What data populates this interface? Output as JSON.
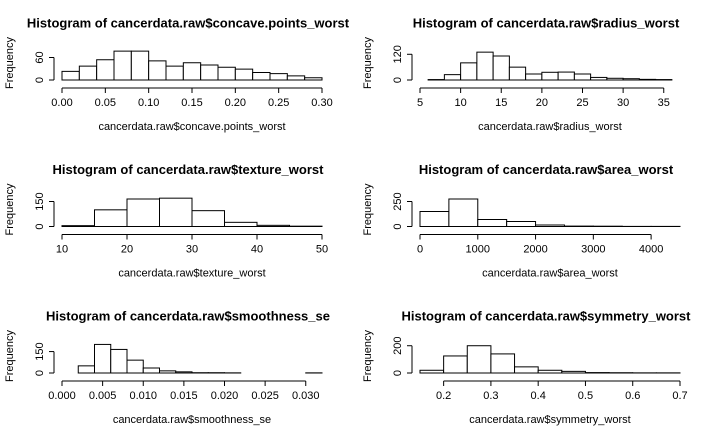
{
  "chart_data": [
    {
      "type": "histogram",
      "title": "Histogram of cancerdata.raw$concave.points_worst",
      "xlabel": "cancerdata.raw$concave.points_worst",
      "ylabel": "Frequency",
      "bins": [
        0,
        0.02,
        0.04,
        0.06,
        0.08,
        0.1,
        0.12,
        0.14,
        0.16,
        0.18,
        0.2,
        0.22,
        0.24,
        0.26,
        0.28,
        0.3
      ],
      "values": [
        23,
        37,
        54,
        77,
        77,
        51,
        37,
        46,
        40,
        34,
        29,
        20,
        17,
        11,
        6
      ],
      "xlim": [
        0,
        0.3
      ],
      "xticks": [
        {
          "value": 0,
          "label": "0.00"
        },
        0.05,
        {
          "value": 0.1,
          "label": "0.10"
        },
        0.15,
        {
          "value": 0.2,
          "label": "0.20"
        },
        0.25,
        {
          "value": 0.3,
          "label": "0.30"
        }
      ],
      "ylim": [
        0,
        80
      ],
      "yticks": [
        0,
        60
      ],
      "color": "#ffffff"
    },
    {
      "type": "histogram",
      "title": "Histogram of cancerdata.raw$radius_worst",
      "xlabel": "cancerdata.raw$radius_worst",
      "ylabel": "Frequency",
      "bins": [
        6,
        8,
        10,
        12,
        14,
        16,
        18,
        20,
        22,
        24,
        26,
        28,
        30,
        32,
        34,
        36
      ],
      "values": [
        2,
        25,
        80,
        130,
        112,
        60,
        28,
        36,
        37,
        28,
        12,
        8,
        6,
        3,
        2
      ],
      "xlim": [
        5,
        37
      ],
      "xticks": [
        5,
        10,
        15,
        20,
        25,
        30,
        35
      ],
      "ylim": [
        0,
        140
      ],
      "yticks": [
        0,
        120
      ],
      "color": "#ffffff"
    },
    {
      "type": "histogram",
      "title": "Histogram of cancerdata.raw$texture_worst",
      "xlabel": "cancerdata.raw$texture_worst",
      "ylabel": "Frequency",
      "bins": [
        10,
        15,
        20,
        25,
        30,
        35,
        40,
        45,
        50
      ],
      "values": [
        5,
        100,
        165,
        170,
        95,
        25,
        7,
        2
      ],
      "xlim": [
        10,
        50
      ],
      "xticks": [
        10,
        20,
        30,
        40,
        50
      ],
      "ylim": [
        0,
        180
      ],
      "yticks": [
        0,
        150
      ],
      "color": "#ffffff"
    },
    {
      "type": "histogram",
      "title": "Histogram of cancerdata.raw$area_worst",
      "xlabel": "cancerdata.raw$area_worst",
      "ylabel": "Frequency",
      "bins": [
        0,
        500,
        1000,
        1500,
        2000,
        2500,
        3000,
        3500,
        4000,
        4500
      ],
      "values": [
        150,
        275,
        70,
        50,
        15,
        4,
        3,
        1,
        1
      ],
      "xlim": [
        0,
        4500
      ],
      "xticks": [
        0,
        1000,
        2000,
        3000,
        4000
      ],
      "ylim": [
        0,
        300
      ],
      "yticks": [
        0,
        250
      ],
      "color": "#ffffff"
    },
    {
      "type": "histogram",
      "title": "Histogram of cancerdata.raw$smoothness_se",
      "xlabel": "cancerdata.raw$smoothness_se",
      "ylabel": "Frequency",
      "bins": [
        0.002,
        0.004,
        0.006,
        0.008,
        0.01,
        0.012,
        0.014,
        0.016,
        0.018,
        0.02,
        0.022,
        0.024,
        0.026,
        0.028,
        0.03,
        0.032
      ],
      "values": [
        50,
        200,
        165,
        90,
        35,
        15,
        8,
        2,
        2,
        1,
        0,
        0,
        0,
        0,
        1
      ],
      "xlim": [
        0,
        0.032
      ],
      "xticks": [
        {
          "value": 0,
          "label": "0.000"
        },
        0.005,
        {
          "value": 0.01,
          "label": "0.010"
        },
        0.015,
        {
          "value": 0.02,
          "label": "0.020"
        },
        0.025,
        {
          "value": 0.03,
          "label": "0.030"
        }
      ],
      "ylim": [
        0,
        210
      ],
      "yticks": [
        0,
        150
      ],
      "color": "#ffffff"
    },
    {
      "type": "histogram",
      "title": "Histogram of cancerdata.raw$symmetry_worst",
      "xlabel": "cancerdata.raw$symmetry_worst",
      "ylabel": "Frequency",
      "bins": [
        0.15,
        0.2,
        0.25,
        0.3,
        0.35,
        0.4,
        0.45,
        0.5,
        0.55,
        0.6,
        0.65,
        0.7
      ],
      "values": [
        20,
        125,
        200,
        140,
        45,
        20,
        12,
        3,
        2,
        1,
        1
      ],
      "xlim": [
        0.15,
        0.7
      ],
      "xticks": [
        0.2,
        0.3,
        0.4,
        0.5,
        0.6,
        0.7
      ],
      "ylim": [
        0,
        220
      ],
      "yticks": [
        0,
        200
      ],
      "color": "#ffffff"
    }
  ]
}
